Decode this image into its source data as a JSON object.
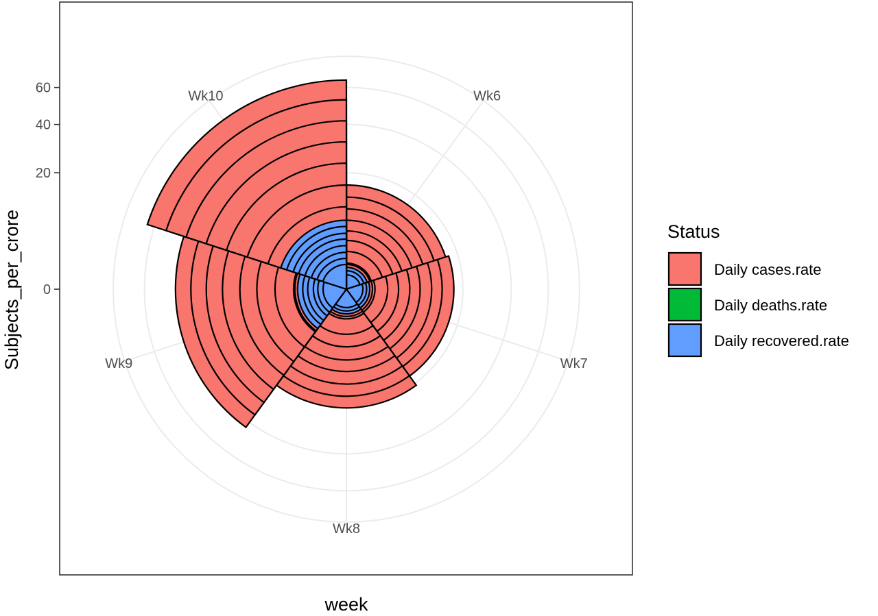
{
  "chart_data": {
    "type": "polar-stacked-bar",
    "xlabel": "week",
    "ylabel": "Subjects_per_crore",
    "y_ticks": [
      0,
      20,
      40,
      60
    ],
    "y_tick_labels": [
      "0",
      "20",
      "40",
      "60"
    ],
    "y_scale": "sqrt",
    "ylim": [
      0,
      80
    ],
    "grid": true,
    "categories": [
      "Wk6",
      "Wk7",
      "Wk8",
      "Wk9",
      "Wk10"
    ],
    "legend": {
      "title": "Status",
      "position": "right",
      "entries": [
        "Daily cases.rate",
        "Daily deaths.rate",
        "Daily recovered.rate"
      ]
    },
    "colors": {
      "Daily cases.rate": "#F8766D",
      "Daily deaths.rate": "#00BA38",
      "Daily recovered.rate": "#619CFF"
    },
    "series": [
      {
        "name": "Daily cases.rate",
        "values": [
          [
            0.7,
            0.9,
            1.0,
            2.1,
            3.5,
            5.0,
            7.0,
            9.5,
            12.5,
            16.0
          ],
          [
            0.8,
            1.0,
            1.2,
            2.5,
            4.0,
            5.9,
            8.0,
            10.7,
            13.5,
            17.0
          ],
          [
            0.9,
            1.1,
            1.3,
            3.0,
            4.9,
            7.4,
            10.0,
            13.3,
            16.9,
            20.8
          ],
          [
            3.5,
            3.9,
            4.1,
            7.5,
            11.8,
            16.7,
            22.6,
            28.9,
            35.6,
            43.0
          ],
          [
            3.8,
            4.2,
            4.5,
            10.0,
            16.0,
            23.4,
            32.0,
            41.8,
            52.9,
            64.5
          ]
        ]
      },
      {
        "name": "Daily deaths.rate",
        "values": [
          [
            0.08,
            0.12,
            0.15
          ],
          [
            0.1,
            0.14,
            0.18
          ],
          [
            0.12,
            0.16,
            0.2
          ],
          [
            0.3,
            0.35,
            0.4
          ],
          [
            0.4,
            0.5,
            0.6
          ]
        ]
      },
      {
        "name": "Daily recovered.rate",
        "values": [
          [
            0.3,
            0.5,
            0.7
          ],
          [
            0.4,
            0.6,
            0.8
          ],
          [
            0.5,
            0.7,
            0.9
          ],
          [
            0.8,
            1.2,
            1.6,
            2.2,
            2.8,
            3.5
          ],
          [
            0.9,
            1.4,
            2.0,
            2.8,
            3.7,
            4.6,
            5.8,
            7.0
          ]
        ]
      }
    ]
  }
}
